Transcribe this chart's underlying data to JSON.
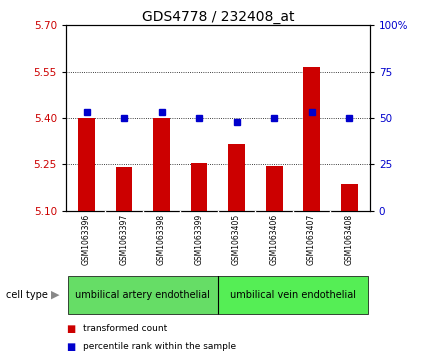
{
  "title": "GDS4778 / 232408_at",
  "samples": [
    "GSM1063396",
    "GSM1063397",
    "GSM1063398",
    "GSM1063399",
    "GSM1063405",
    "GSM1063406",
    "GSM1063407",
    "GSM1063408"
  ],
  "red_values": [
    5.4,
    5.24,
    5.4,
    5.255,
    5.315,
    5.245,
    5.565,
    5.185
  ],
  "blue_values": [
    53,
    50,
    53,
    50,
    48,
    50,
    53,
    50
  ],
  "ylim_left": [
    5.1,
    5.7
  ],
  "ylim_right": [
    0,
    100
  ],
  "yticks_left": [
    5.1,
    5.25,
    5.4,
    5.55,
    5.7
  ],
  "yticks_right": [
    0,
    25,
    50,
    75,
    100
  ],
  "ytick_labels_right": [
    "0",
    "25",
    "50",
    "75",
    "100%"
  ],
  "hlines": [
    5.25,
    5.4,
    5.55
  ],
  "cell_types": [
    {
      "label": "umbilical artery endothelial",
      "start": 0,
      "end": 3,
      "color": "#66dd66"
    },
    {
      "label": "umbilical vein endothelial",
      "start": 4,
      "end": 7,
      "color": "#55ee55"
    }
  ],
  "cell_type_label": "cell type",
  "bar_color": "#cc0000",
  "dot_color": "#0000cc",
  "legend_items": [
    {
      "color": "#cc0000",
      "label": "transformed count"
    },
    {
      "color": "#0000cc",
      "label": "percentile rank within the sample"
    }
  ],
  "bar_width": 0.45,
  "title_fontsize": 10,
  "tick_fontsize": 7.5,
  "axis_label_color_left": "#cc0000",
  "axis_label_color_right": "#0000cc",
  "plot_bg": "#ffffff",
  "sample_box_bg": "#cccccc",
  "grid_color": "#000000"
}
